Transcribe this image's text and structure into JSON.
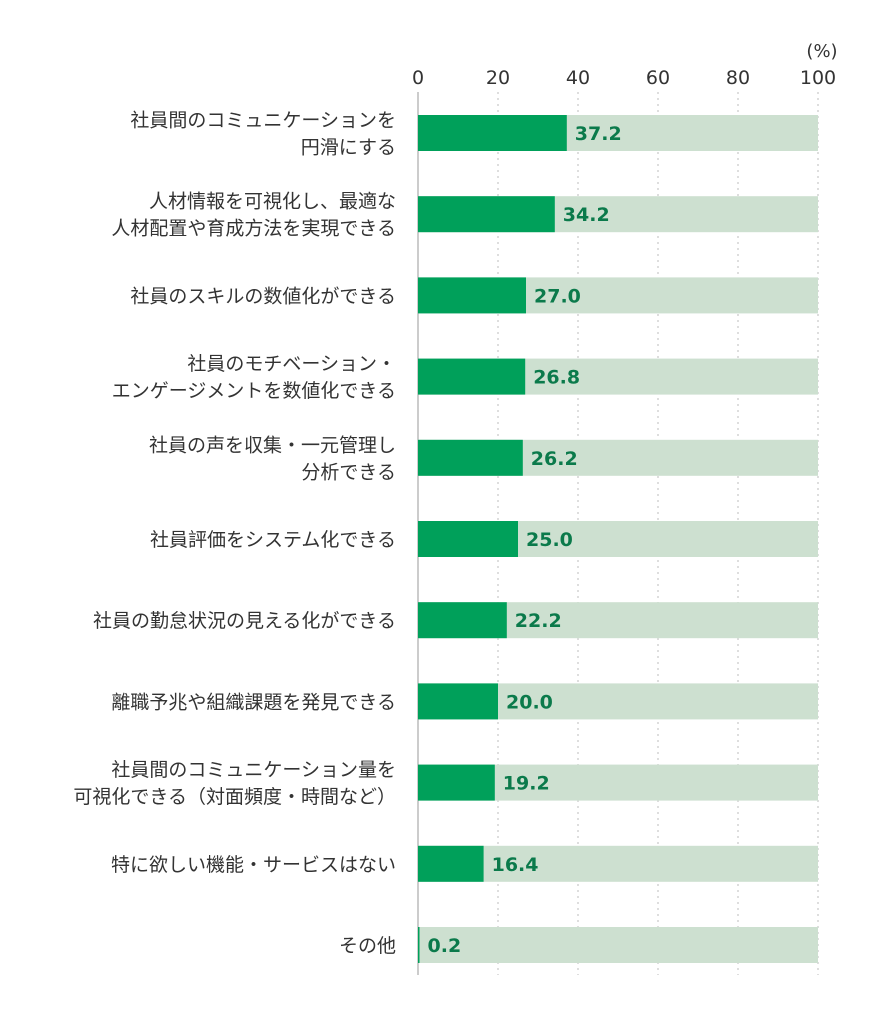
{
  "chart_data": {
    "type": "bar",
    "orientation": "horizontal",
    "unit": "(%)",
    "xlim": [
      0,
      100
    ],
    "x_ticks": [
      0,
      20,
      40,
      60,
      80,
      100
    ],
    "grid": true,
    "categories": [
      [
        "社員間のコミュニケーションを",
        "円滑にする"
      ],
      [
        "人材情報を可視化し、最適な",
        "人材配置や育成方法を実現できる"
      ],
      [
        "社員のスキルの数値化ができる"
      ],
      [
        "社員のモチベーション・",
        "エンゲージメントを数値化できる"
      ],
      [
        "社員の声を収集・一元管理し",
        "分析できる"
      ],
      [
        "社員評価をシステム化できる"
      ],
      [
        "社員の勤怠状況の見える化ができる"
      ],
      [
        "離職予兆や組織課題を発見できる"
      ],
      [
        "社員間のコミュニケーション量を",
        "可視化できる（対面頻度・時間など）"
      ],
      [
        "特に欲しい機能・サービスはない"
      ],
      [
        "その他"
      ]
    ],
    "values": [
      37.2,
      34.2,
      27.0,
      26.8,
      26.2,
      25.0,
      22.2,
      20.0,
      19.2,
      16.4,
      0.2
    ],
    "value_labels": [
      "37.2",
      "34.2",
      "27.0",
      "26.8",
      "26.2",
      "25.0",
      "22.2",
      "20.0",
      "19.2",
      "16.4",
      "0.2"
    ],
    "colors": {
      "bar": "#00a05a",
      "track": "#cde0d0",
      "value_text": "#0b7a4b",
      "grid": "#c8c8c8",
      "axis": "#bbbbbb",
      "text": "#333333"
    }
  }
}
